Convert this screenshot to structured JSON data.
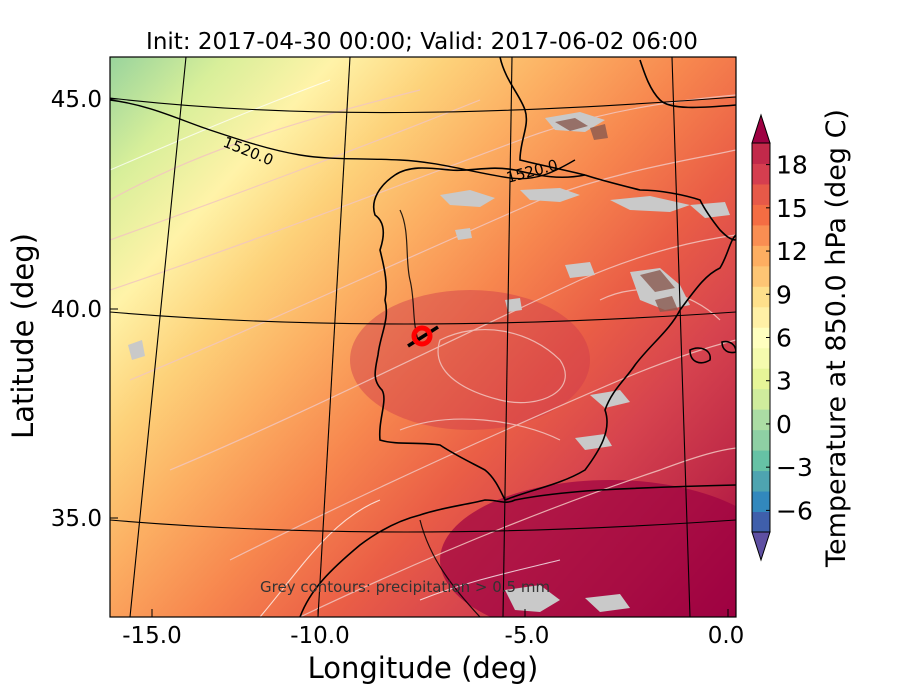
{
  "title": "Init: 2017-04-30 00:00; Valid: 2017-06-02 06:00",
  "map": {
    "xlabel": "Longitude (deg)",
    "ylabel": "Latitude (deg)",
    "x_ticks": [
      "-15.0",
      "-10.0",
      "-5.0",
      "0.0"
    ],
    "y_ticks": [
      "45.0",
      "40.0",
      "35.0"
    ],
    "contour_labels": [
      "1520.0",
      "1520.0"
    ],
    "note": "Grey contours: precipitation > 0.5 mm",
    "marker": {
      "lon": -7.6,
      "lat": 39.3,
      "color": "#ff0000"
    }
  },
  "colorbar": {
    "label": "Temperature at 850.0 hPa (deg C)",
    "ticks": [
      "18",
      "15",
      "12",
      "9",
      "6",
      "3",
      "0",
      "−3",
      "−6"
    ],
    "range": [
      -9,
      21
    ],
    "colors": [
      "#5e4fa2",
      "#3f5fab",
      "#3288bd",
      "#4ea4b0",
      "#66c2a5",
      "#8ed0a4",
      "#abdda4",
      "#cfec9d",
      "#e6f598",
      "#f5fbae",
      "#ffffbf",
      "#fff0a6",
      "#fee08b",
      "#fdc574",
      "#fdae61",
      "#f98e52",
      "#f46d43",
      "#e75948",
      "#d53e4f",
      "#c2294a",
      "#9e0142"
    ]
  }
}
